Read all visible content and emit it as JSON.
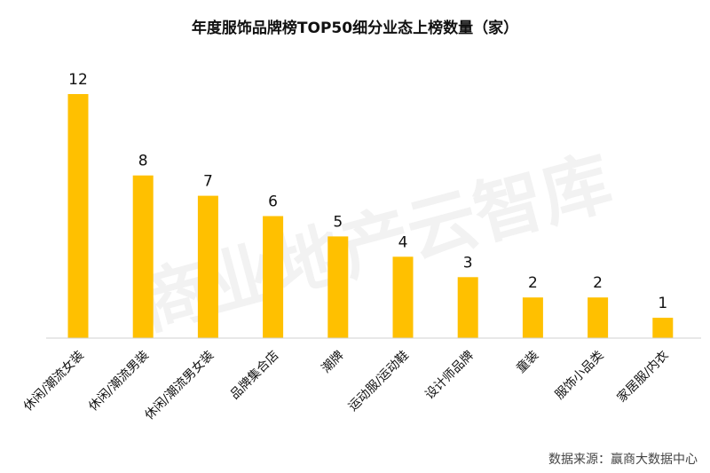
{
  "chart_data": {
    "type": "bar",
    "title": "年度服饰品牌榜TOP50细分业态上榜数量（家）",
    "categories": [
      "休闲/潮流女装",
      "休闲/潮流男装",
      "休闲/潮流男女装",
      "品牌集合店",
      "潮牌",
      "运动服/运动鞋",
      "设计师品牌",
      "童装",
      "服饰小品类",
      "家居服/内衣"
    ],
    "values": [
      12,
      8,
      7,
      6,
      5,
      4,
      3,
      2,
      2,
      1
    ],
    "ylim": [
      0,
      12
    ],
    "grid": false,
    "bar_color": "#FFC000"
  },
  "watermark": "商业地产云智库",
  "source": "数据来源：赢商大数据中心"
}
